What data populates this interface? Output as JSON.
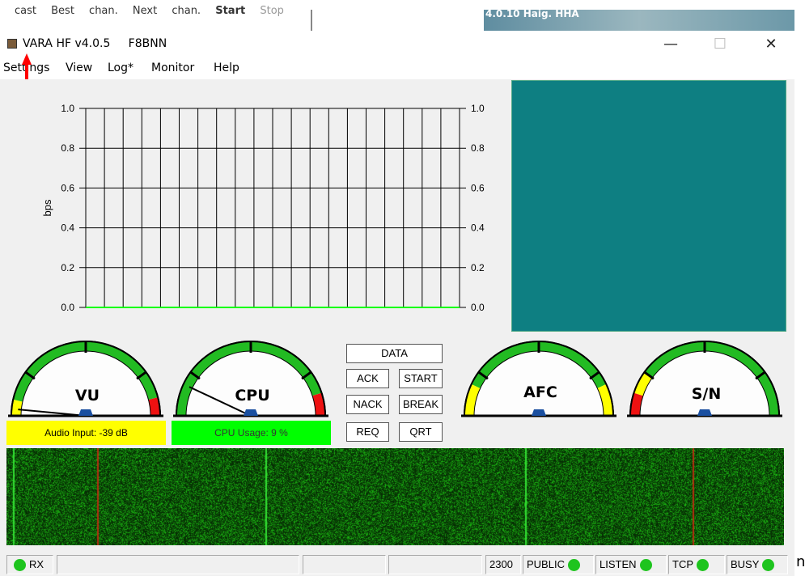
{
  "background_window": {
    "toolbar_text": [
      "cast",
      "Best chan.",
      "Next chan."
    ],
    "start_label": "Start",
    "stop_label": "Stop",
    "right_text": "4.0.10  Haig. HHA"
  },
  "window": {
    "title": "VARA HF v4.0.5",
    "callsign": "F8BNN",
    "minimize": "—",
    "maximize": "☐",
    "close": "✕"
  },
  "menu": [
    "Settings",
    "View",
    "Log*",
    "Monitor",
    "Help"
  ],
  "chart_data": {
    "type": "line",
    "ylabel": "bps",
    "ylim": [
      0,
      1.0
    ],
    "yticks": [
      "1.0",
      "0.8",
      "0.6",
      "0.4",
      "0.2",
      "0.0"
    ],
    "vertical_gridlines": 20,
    "series": [
      {
        "values": [
          0,
          0
        ]
      }
    ],
    "line_color": "#00ff00"
  },
  "gauges": {
    "vu": {
      "label": "VU",
      "bar_text": "Audio Input: -39 dB",
      "bar_color": "#ffff00"
    },
    "cpu": {
      "label": "CPU",
      "bar_text": "CPU Usage: 9 %",
      "bar_color": "#00ff00"
    },
    "afc": {
      "label": "AFC"
    },
    "sn": {
      "label": "S/N"
    }
  },
  "buttons": {
    "data": "DATA",
    "ack": "ACK",
    "start": "START",
    "nack": "NACK",
    "break": "BREAK",
    "req": "REQ",
    "qrt": "QRT"
  },
  "status": {
    "rx": "RX",
    "bandwidth": "2300",
    "public": "PUBLIC",
    "listen": "LISTEN",
    "tcp": "TCP",
    "busy": "BUSY",
    "led_color": "#1ec41e"
  },
  "trailing_char": "n"
}
